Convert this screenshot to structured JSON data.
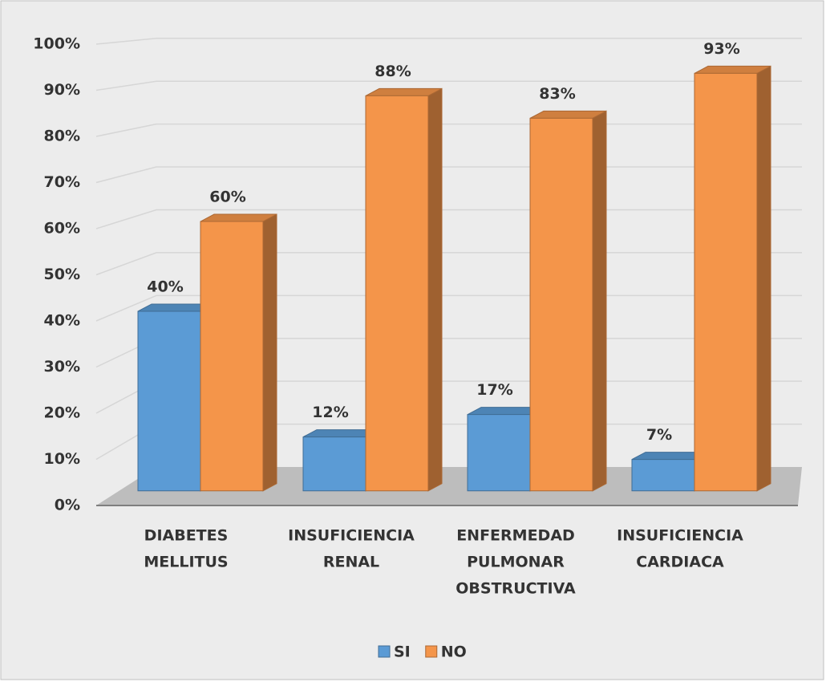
{
  "chart_data": {
    "type": "bar3d",
    "categories": [
      [
        "DIABETES",
        "MELLITUS"
      ],
      [
        "INSUFICIENCIA",
        "RENAL"
      ],
      [
        "ENFERMEDAD",
        "PULMONAR",
        "OBSTRUCTIVA"
      ],
      [
        "INSUFICIENCIA",
        "CARDIACA"
      ]
    ],
    "series": [
      {
        "name": "SI",
        "color": "#5b9bd5",
        "values": [
          40,
          12,
          17,
          7
        ],
        "value_labels": [
          "40%",
          "12%",
          "17%",
          "7%"
        ]
      },
      {
        "name": "NO",
        "color": "#f4954a",
        "values": [
          60,
          88,
          83,
          93
        ],
        "value_labels": [
          "60%",
          "88%",
          "83%",
          "93%"
        ]
      }
    ],
    "ylim": [
      0,
      100
    ],
    "yticks": [
      {
        "value": 0,
        "label": "0%"
      },
      {
        "value": 10,
        "label": "10%"
      },
      {
        "value": 20,
        "label": "20%"
      },
      {
        "value": 30,
        "label": "30%"
      },
      {
        "value": 40,
        "label": "40%"
      },
      {
        "value": 50,
        "label": "50%"
      },
      {
        "value": 60,
        "label": "60%"
      },
      {
        "value": 70,
        "label": "70%"
      },
      {
        "value": 80,
        "label": "80%"
      },
      {
        "value": 90,
        "label": "90%"
      },
      {
        "value": 100,
        "label": "100%"
      }
    ],
    "grid": true,
    "legend": "bottom"
  }
}
